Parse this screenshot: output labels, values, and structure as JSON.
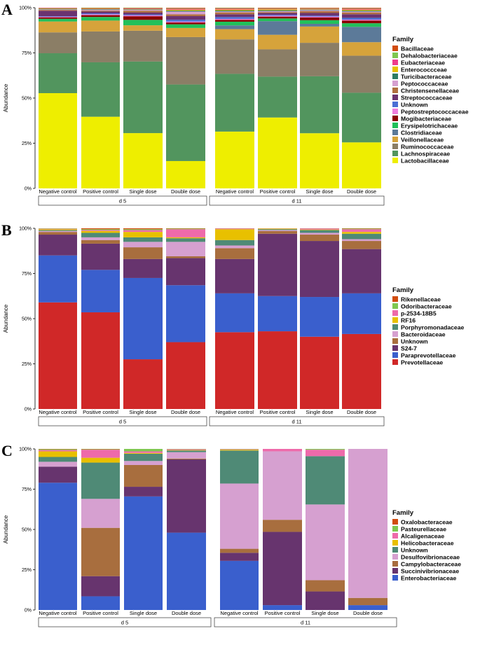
{
  "chart_data": [
    {
      "type": "bar",
      "stacked": true,
      "panel": "A",
      "ylabel": "Abundance",
      "yticks": [
        "0%",
        "25%",
        "50%",
        "75%",
        "100%"
      ],
      "ylim": [
        0,
        100
      ],
      "groups": [
        {
          "label": "d 5",
          "categories": [
            "Negative control",
            "Positive control",
            "Single dose",
            "Double dose"
          ]
        },
        {
          "label": "d 11",
          "categories": [
            "Negative control",
            "Positive control",
            "Single dose",
            "Double dose"
          ]
        }
      ],
      "legend_title": "Family",
      "series": [
        {
          "name": "Lactobacillaceae",
          "color": "#EEEE00",
          "values": [
            52.5,
            39.5,
            30.5,
            15,
            30.5,
            39,
            30.5,
            25.5
          ]
        },
        {
          "name": "Lachnospiraceae",
          "color": "#52955E",
          "values": [
            22,
            30,
            39.5,
            42,
            31,
            22.5,
            31.5,
            27.5
          ]
        },
        {
          "name": "Ruminococcaceae",
          "color": "#8B7E66",
          "values": [
            11.5,
            17,
            17,
            26,
            18.5,
            15,
            18.5,
            20.5
          ]
        },
        {
          "name": "Veillonellaceae",
          "color": "#D6A33B",
          "values": [
            6,
            6,
            3,
            5,
            5.5,
            8,
            9,
            7.5
          ]
        },
        {
          "name": "Clostridiaceae",
          "color": "#5C7A99",
          "values": [
            0,
            0,
            0,
            0,
            2,
            7.5,
            1.5,
            8.5
          ]
        },
        {
          "name": "Erysipelotrichaceae",
          "color": "#22C05A",
          "values": [
            1.5,
            2,
            3,
            2,
            2,
            1.5,
            2,
            2
          ]
        },
        {
          "name": "Mogibacteriaceae",
          "color": "#8B0000",
          "values": [
            0.8,
            1,
            2,
            1,
            1,
            1,
            1.5,
            1.5
          ]
        },
        {
          "name": "Peptostreptococcaceae",
          "color": "#EE7EDD",
          "values": [
            0.3,
            0.5,
            0.5,
            0.5,
            0.5,
            0.5,
            0.5,
            0.5
          ]
        },
        {
          "name": "Unknown",
          "color": "#4A6FD4",
          "values": [
            0.3,
            0.5,
            0.5,
            1,
            1,
            0.5,
            0.5,
            1
          ]
        },
        {
          "name": "Streptococcaceae",
          "color": "#6B3370",
          "values": [
            3,
            1,
            1,
            2,
            1.5,
            1,
            1.5,
            2
          ]
        },
        {
          "name": "Christensenellaceae",
          "color": "#B07040",
          "values": [
            0.5,
            0.5,
            1,
            1,
            1,
            0.5,
            1,
            1
          ]
        },
        {
          "name": "Peptococcaceae",
          "color": "#D6A0D0",
          "values": [
            0.3,
            0.5,
            0.5,
            1.5,
            0.5,
            0.5,
            0.5,
            0.5
          ]
        },
        {
          "name": "Turicibacteraceae",
          "color": "#2E7D62",
          "values": [
            0.3,
            0.3,
            0.3,
            0.5,
            0.5,
            0.5,
            0.3,
            0.5
          ]
        },
        {
          "name": "Enterococcceae",
          "color": "#E8C000",
          "values": [
            0.2,
            0.2,
            0.2,
            0.5,
            0.5,
            0.5,
            0.2,
            0.5
          ]
        },
        {
          "name": "Eubacteriaceae",
          "color": "#EE3C8C",
          "values": [
            0.2,
            0.2,
            0.3,
            0.5,
            0.5,
            0.3,
            0.3,
            0.5
          ]
        },
        {
          "name": "Dehalobacteriaceae",
          "color": "#7EC850",
          "values": [
            0.1,
            0.2,
            0.2,
            0.3,
            0.3,
            0.3,
            0.3,
            0.3
          ]
        },
        {
          "name": "Bacillaceae",
          "color": "#D14C0E",
          "values": [
            0.1,
            0.2,
            0.2,
            0.3,
            0.2,
            0.3,
            0.3,
            0.3
          ]
        }
      ]
    },
    {
      "type": "bar",
      "stacked": true,
      "panel": "B",
      "ylabel": "Abundance",
      "yticks": [
        "0%",
        "25%",
        "50%",
        "75%",
        "100%"
      ],
      "ylim": [
        0,
        100
      ],
      "groups": [
        {
          "label": "d 5",
          "categories": [
            "Negative control",
            "Positive control",
            "Single dose",
            "Double dose"
          ]
        },
        {
          "label": "d 11",
          "categories": [
            "Negative control",
            "Positive control",
            "Single dose",
            "Double dose"
          ]
        }
      ],
      "legend_title": "Family",
      "series": [
        {
          "name": "Prevotellaceae",
          "color": "#D02828",
          "values": [
            59,
            53.5,
            27.5,
            37,
            42.5,
            43,
            40,
            41.5
          ]
        },
        {
          "name": "Paraprevotellaceae",
          "color": "#3A5FCD",
          "values": [
            26,
            23.5,
            45,
            31.5,
            21.5,
            19.5,
            22,
            22.5
          ]
        },
        {
          "name": "S24-7",
          "color": "#67346E",
          "values": [
            11.5,
            14.5,
            10.5,
            15,
            19,
            34.5,
            31,
            24.5
          ]
        },
        {
          "name": "Unknown",
          "color": "#A86E3E",
          "values": [
            1.5,
            2,
            6.5,
            1,
            6,
            1.5,
            3.5,
            4.5
          ]
        },
        {
          "name": "Bacteroidaceae",
          "color": "#D6A0D0",
          "values": [
            0.5,
            1.5,
            3,
            8,
            1.5,
            0.5,
            1,
            1
          ]
        },
        {
          "name": "Porphyromonadaceae",
          "color": "#4F8A76",
          "values": [
            0.5,
            2.5,
            2.5,
            2,
            3,
            0.5,
            1.5,
            3
          ]
        },
        {
          "name": "RF16",
          "color": "#E8C000",
          "values": [
            0.5,
            1,
            3,
            0.5,
            6,
            0.3,
            0.3,
            1
          ]
        },
        {
          "name": "p-2534-18B5",
          "color": "#EE6AAA",
          "values": [
            0.2,
            0.5,
            1,
            4.5,
            0.3,
            0.1,
            0.5,
            1.5
          ]
        },
        {
          "name": "Odoribacteraceae",
          "color": "#7EC850",
          "values": [
            0.2,
            0.5,
            0.5,
            0.3,
            0.1,
            0.05,
            0.1,
            0.3
          ]
        },
        {
          "name": "Rikenellaceae",
          "color": "#D14C0E",
          "values": [
            0.1,
            0.5,
            0.5,
            0.2,
            0.1,
            0.05,
            0.1,
            0.2
          ]
        }
      ]
    },
    {
      "type": "bar",
      "stacked": true,
      "panel": "C",
      "ylabel": "Abundance",
      "yticks": [
        "0%",
        "25%",
        "50%",
        "75%",
        "100%"
      ],
      "ylim": [
        0,
        100
      ],
      "groups": [
        {
          "label": "d 5",
          "categories": [
            "Negative control",
            "Positive control",
            "Single dose",
            "Double dose"
          ]
        },
        {
          "label": "d 11",
          "categories": [
            "Negative control",
            "Positive control",
            "Single dose",
            "Double dose"
          ]
        }
      ],
      "legend_title": "Family",
      "series": [
        {
          "name": "Enterobacteriaceae",
          "color": "#3A5FCD",
          "values": [
            79,
            8.5,
            70.5,
            48,
            30.5,
            3,
            0,
            3
          ]
        },
        {
          "name": "Succinivibrionaceae",
          "color": "#67346E",
          "values": [
            10,
            12.5,
            6,
            45.5,
            5,
            45.5,
            11.5,
            0
          ]
        },
        {
          "name": "Campylobacteraceae",
          "color": "#A86E3E",
          "values": [
            0,
            30,
            13.5,
            0.5,
            2.5,
            7.5,
            7,
            4.5
          ]
        },
        {
          "name": "Desulfovibrionaceae",
          "color": "#D6A0D0",
          "values": [
            3,
            18,
            2.5,
            4,
            40.5,
            42.5,
            47,
            92.5
          ]
        },
        {
          "name": "Unknown",
          "color": "#4F8A76",
          "values": [
            3,
            22.5,
            4.5,
            1,
            20.5,
            0,
            30,
            0
          ]
        },
        {
          "name": "Helicobacteraceae",
          "color": "#E8C000",
          "values": [
            3.5,
            3,
            0.5,
            0.3,
            0.5,
            0,
            0,
            0
          ]
        },
        {
          "name": "Alcaligenaceae",
          "color": "#EE6AAA",
          "values": [
            0.8,
            5,
            1,
            0.5,
            0.3,
            1.5,
            4,
            0
          ]
        },
        {
          "name": "Pasteurellaceae",
          "color": "#7EC850",
          "values": [
            0.5,
            0.3,
            1.5,
            0.2,
            0.2,
            0,
            0.5,
            0
          ]
        },
        {
          "name": "Oxalobacteraceae",
          "color": "#D14C0E",
          "values": [
            0.2,
            0.2,
            0,
            0,
            0,
            0,
            0,
            0
          ]
        }
      ]
    }
  ]
}
